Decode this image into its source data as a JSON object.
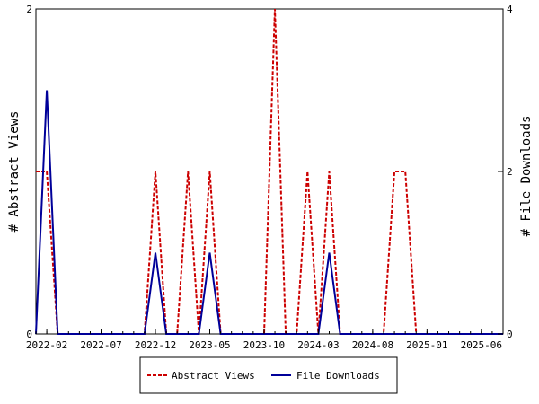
{
  "chart_data": {
    "type": "line",
    "title": "",
    "x_tick_labels": [
      "2022-02",
      "2022-07",
      "2022-12",
      "2023-05",
      "2023-10",
      "2024-03",
      "2024-08",
      "2025-01",
      "2025-06"
    ],
    "x_range": [
      "2022-01",
      "2025-08"
    ],
    "y_left": {
      "label": "# Abstract Views",
      "range": [
        0,
        2
      ],
      "ticks": [
        "0",
        "2"
      ]
    },
    "y_right": {
      "label": "# File Downloads",
      "range": [
        0,
        4
      ],
      "ticks": [
        "0",
        "2",
        "4"
      ]
    },
    "grid": false,
    "legend_position": "bottom",
    "series": [
      {
        "name": "Abstract Views",
        "axis": "left",
        "color": "#cc0000",
        "dash": true,
        "points": [
          [
            "2022-01",
            1
          ],
          [
            "2022-02",
            1
          ],
          [
            "2022-03",
            0
          ],
          [
            "2022-04",
            0
          ],
          [
            "2022-05",
            0
          ],
          [
            "2022-06",
            0
          ],
          [
            "2022-07",
            0
          ],
          [
            "2022-08",
            0
          ],
          [
            "2022-09",
            0
          ],
          [
            "2022-10",
            0
          ],
          [
            "2022-11",
            0
          ],
          [
            "2022-12",
            1
          ],
          [
            "2023-01",
            0
          ],
          [
            "2023-02",
            0
          ],
          [
            "2023-03",
            1
          ],
          [
            "2023-04",
            0
          ],
          [
            "2023-05",
            1
          ],
          [
            "2023-06",
            0
          ],
          [
            "2023-07",
            0
          ],
          [
            "2023-08",
            0
          ],
          [
            "2023-09",
            0
          ],
          [
            "2023-10",
            0
          ],
          [
            "2023-11",
            2
          ],
          [
            "2023-12",
            0
          ],
          [
            "2024-01",
            0
          ],
          [
            "2024-02",
            1
          ],
          [
            "2024-03",
            0
          ],
          [
            "2024-04",
            1
          ],
          [
            "2024-05",
            0
          ],
          [
            "2024-06",
            0
          ],
          [
            "2024-07",
            0
          ],
          [
            "2024-08",
            0
          ],
          [
            "2024-09",
            0
          ],
          [
            "2024-10",
            1
          ],
          [
            "2024-11",
            1
          ],
          [
            "2024-12",
            0
          ],
          [
            "2025-01",
            0
          ],
          [
            "2025-02",
            0
          ],
          [
            "2025-03",
            0
          ],
          [
            "2025-04",
            0
          ],
          [
            "2025-05",
            0
          ],
          [
            "2025-06",
            0
          ],
          [
            "2025-07",
            0
          ],
          [
            "2025-08",
            0
          ]
        ]
      },
      {
        "name": "File Downloads",
        "axis": "right",
        "color": "#000099",
        "dash": false,
        "points": [
          [
            "2022-01",
            0
          ],
          [
            "2022-02",
            3
          ],
          [
            "2022-03",
            0
          ],
          [
            "2022-04",
            0
          ],
          [
            "2022-05",
            0
          ],
          [
            "2022-06",
            0
          ],
          [
            "2022-07",
            0
          ],
          [
            "2022-08",
            0
          ],
          [
            "2022-09",
            0
          ],
          [
            "2022-10",
            0
          ],
          [
            "2022-11",
            0
          ],
          [
            "2022-12",
            1
          ],
          [
            "2023-01",
            0
          ],
          [
            "2023-02",
            0
          ],
          [
            "2023-03",
            0
          ],
          [
            "2023-04",
            0
          ],
          [
            "2023-05",
            1
          ],
          [
            "2023-06",
            0
          ],
          [
            "2023-07",
            0
          ],
          [
            "2023-08",
            0
          ],
          [
            "2023-09",
            0
          ],
          [
            "2023-10",
            0
          ],
          [
            "2023-11",
            0
          ],
          [
            "2023-12",
            0
          ],
          [
            "2024-01",
            0
          ],
          [
            "2024-02",
            0
          ],
          [
            "2024-03",
            0
          ],
          [
            "2024-04",
            1
          ],
          [
            "2024-05",
            0
          ],
          [
            "2024-06",
            0
          ],
          [
            "2024-07",
            0
          ],
          [
            "2024-08",
            0
          ],
          [
            "2024-09",
            0
          ],
          [
            "2024-10",
            0
          ],
          [
            "2024-11",
            0
          ],
          [
            "2024-12",
            0
          ],
          [
            "2025-01",
            0
          ],
          [
            "2025-02",
            0
          ],
          [
            "2025-03",
            0
          ],
          [
            "2025-04",
            0
          ],
          [
            "2025-05",
            0
          ],
          [
            "2025-06",
            0
          ],
          [
            "2025-07",
            0
          ],
          [
            "2025-08",
            0
          ]
        ]
      }
    ]
  }
}
